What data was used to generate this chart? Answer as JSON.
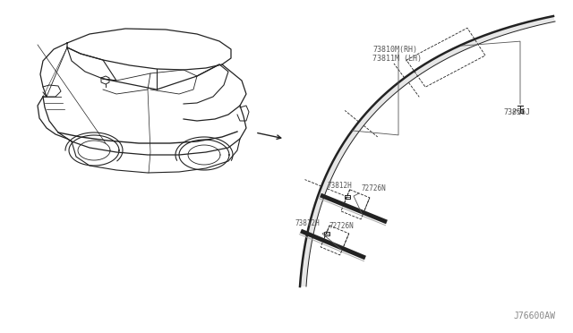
{
  "bg_color": "#ffffff",
  "line_color": "#222222",
  "label_color": "#555555",
  "fig_width": 6.4,
  "fig_height": 3.72,
  "dpi": 100,
  "parts": {
    "moulding_rh": "73810M(RH)",
    "moulding_lh": "73811M (LH)",
    "clip": "73856J",
    "retainer1": "73812H",
    "retainer2": "73812H",
    "strip1": "72726N",
    "strip2": "72726N"
  },
  "watermark": "J76600AW"
}
